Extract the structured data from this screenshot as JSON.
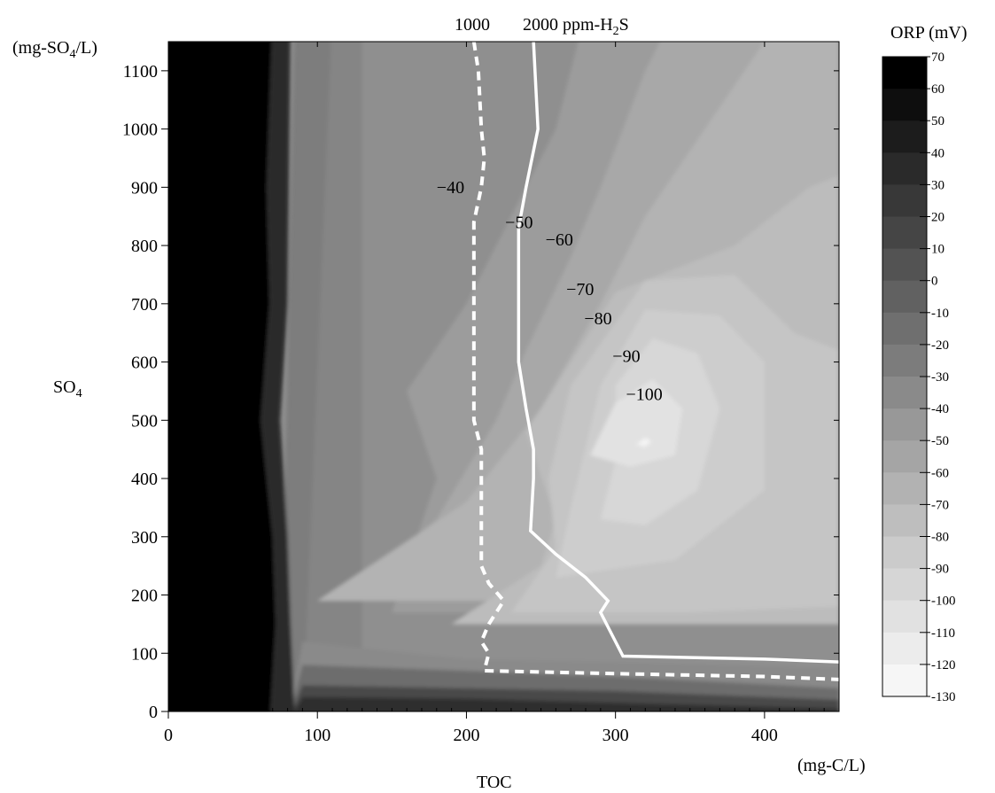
{
  "chart_data": {
    "type": "contour",
    "xlabel": "TOC",
    "xunit": "(mg-C/L)",
    "ylabel": "SO",
    "ylabel_sub": "4",
    "yunit_pre": "(mg-SO",
    "yunit_sub": "4",
    "yunit_post": "/L)",
    "xlim": [
      0,
      450
    ],
    "ylim": [
      0,
      1150
    ],
    "x_ticks": [
      0,
      100,
      200,
      300,
      400
    ],
    "y_ticks": [
      0,
      100,
      200,
      300,
      400,
      500,
      600,
      700,
      800,
      900,
      1000,
      1100
    ],
    "colorbar": {
      "title": "ORP (mV)",
      "levels": [
        70,
        60,
        50,
        40,
        30,
        20,
        10,
        0,
        -10,
        -20,
        -30,
        -40,
        -50,
        -60,
        -70,
        -80,
        -90,
        -100,
        -110,
        -120,
        -130
      ],
      "colors": [
        "#000000",
        "#0e0e0e",
        "#1c1c1c",
        "#2a2a2a",
        "#383838",
        "#454545",
        "#535353",
        "#616161",
        "#6f6f6f",
        "#7c7c7c",
        "#8a8a8a",
        "#989898",
        "#a5a5a5",
        "#b2b2b2",
        "#bebebe",
        "#cbcbcb",
        "#d6d6d6",
        "#e1e1e1",
        "#ececec",
        "#f6f6f6"
      ]
    },
    "contour_labels": [
      {
        "text": "−40",
        "x": 180,
        "y": 890
      },
      {
        "text": "−50",
        "x": 226,
        "y": 830
      },
      {
        "text": "−60",
        "x": 253,
        "y": 800
      },
      {
        "text": "−70",
        "x": 267,
        "y": 715
      },
      {
        "text": "−80",
        "x": 279,
        "y": 665
      },
      {
        "text": "−90",
        "x": 298,
        "y": 600
      },
      {
        "text": "−100",
        "x": 307,
        "y": 535
      }
    ],
    "h2s_lines": [
      {
        "label": "1000",
        "style": "dashed",
        "points": [
          [
            205,
            1150
          ],
          [
            208,
            1100
          ],
          [
            210,
            1000
          ],
          [
            212,
            950
          ],
          [
            210,
            900
          ],
          [
            205,
            840
          ],
          [
            205,
            700
          ],
          [
            205,
            600
          ],
          [
            205,
            500
          ],
          [
            210,
            450
          ],
          [
            210,
            400
          ],
          [
            210,
            300
          ],
          [
            210,
            250
          ],
          [
            215,
            220
          ],
          [
            225,
            190
          ],
          [
            215,
            150
          ],
          [
            210,
            120
          ],
          [
            215,
            100
          ],
          [
            212,
            70
          ],
          [
            300,
            65
          ],
          [
            400,
            60
          ],
          [
            450,
            55
          ]
        ]
      },
      {
        "label": "2000 ppm-H",
        "label_sub": "2",
        "label_post": "S",
        "style": "solid",
        "points": [
          [
            245,
            1150
          ],
          [
            247,
            1050
          ],
          [
            248,
            1000
          ],
          [
            240,
            900
          ],
          [
            235,
            830
          ],
          [
            235,
            700
          ],
          [
            235,
            600
          ],
          [
            240,
            520
          ],
          [
            245,
            450
          ],
          [
            245,
            400
          ],
          [
            243,
            310
          ],
          [
            260,
            270
          ],
          [
            280,
            230
          ],
          [
            295,
            190
          ],
          [
            290,
            170
          ],
          [
            300,
            120
          ],
          [
            305,
            95
          ],
          [
            400,
            90
          ],
          [
            450,
            85
          ]
        ]
      }
    ]
  }
}
